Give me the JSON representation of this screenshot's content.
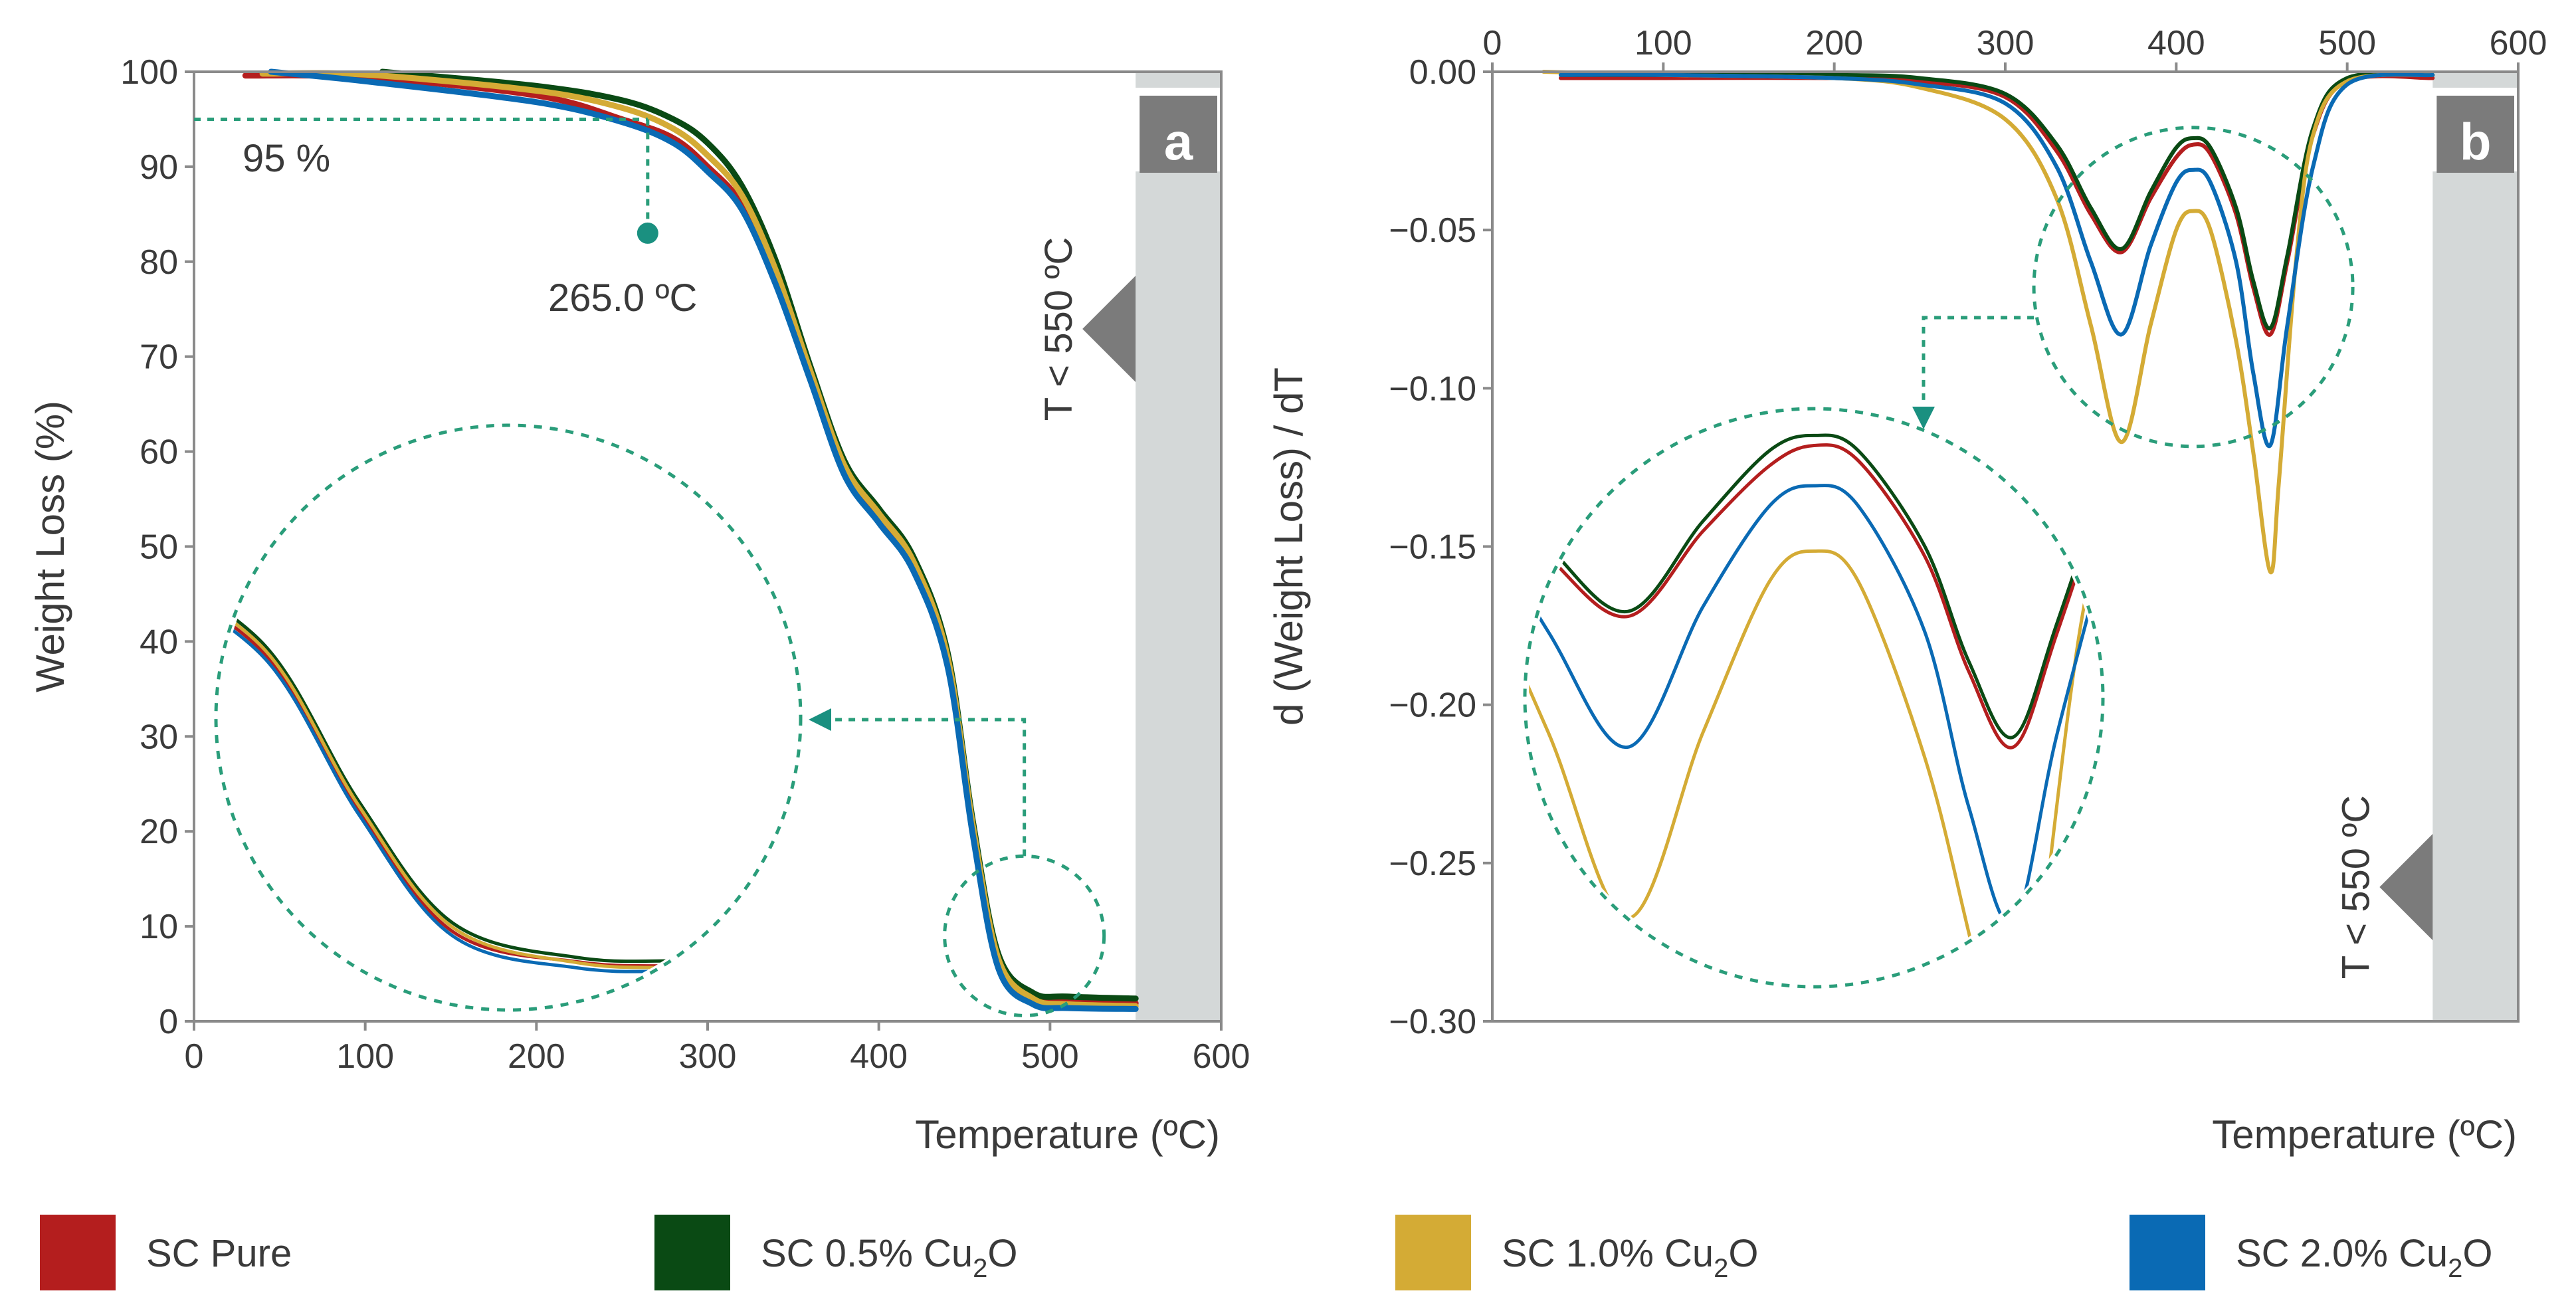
{
  "legend": [
    {
      "name": "SC Pure",
      "prefix": "SC Pure",
      "sub": "",
      "suffix": "",
      "color": "#b41e1e"
    },
    {
      "name": "SC 0.5% Cu2O",
      "prefix": "SC 0.5% Cu",
      "sub": "2",
      "suffix": "O",
      "color": "#0a4a14"
    },
    {
      "name": "SC 1.0% Cu2O",
      "prefix": "SC 1.0% Cu",
      "sub": "2",
      "suffix": "O",
      "color": "#d4ab35"
    },
    {
      "name": "SC 2.0% Cu2O",
      "prefix": "SC 2.0% Cu",
      "sub": "2",
      "suffix": "O",
      "color": "#0a6ab4"
    }
  ],
  "chart_data": [
    {
      "type": "line",
      "panel": "a",
      "xlabel": "Temperature (ºC)",
      "ylabel": "Weight Loss (%)",
      "xlim": [
        0,
        600
      ],
      "ylim": [
        0,
        100
      ],
      "xticks": [
        0,
        100,
        200,
        300,
        400,
        500,
        600
      ],
      "yticks": [
        0,
        10,
        20,
        30,
        40,
        50,
        60,
        70,
        80,
        90,
        100
      ],
      "region_label": "T < 550 ºC",
      "annotations": {
        "threshold": "95 %",
        "onset": "265.0 ºC"
      },
      "series": [
        {
          "name": "SC Pure",
          "x": [
            30,
            100,
            200,
            250,
            280,
            300,
            320,
            340,
            360,
            380,
            400,
            420,
            440,
            455,
            470,
            490,
            510,
            550
          ],
          "y": [
            99.6,
            99.4,
            97.5,
            95.0,
            93.0,
            90.0,
            86.0,
            78.0,
            68.0,
            58.0,
            53.0,
            48.0,
            38.0,
            20.0,
            6.0,
            2.5,
            2.0,
            1.9
          ]
        },
        {
          "name": "SC 0.5% Cu2O",
          "x": [
            110,
            200,
            250,
            280,
            300,
            320,
            340,
            360,
            380,
            400,
            420,
            440,
            455,
            470,
            490,
            510,
            550
          ],
          "y": [
            100.0,
            98.5,
            97.0,
            95.0,
            92.5,
            88.0,
            80.0,
            69.0,
            59.0,
            54.0,
            49.0,
            39.0,
            21.0,
            7.0,
            3.0,
            2.6,
            2.4
          ]
        },
        {
          "name": "SC 1.0% Cu2O",
          "x": [
            40,
            100,
            200,
            250,
            280,
            300,
            320,
            340,
            360,
            380,
            400,
            420,
            440,
            455,
            470,
            490,
            510,
            550
          ],
          "y": [
            99.8,
            99.7,
            98.0,
            96.2,
            94.0,
            91.2,
            87.0,
            79.0,
            68.5,
            58.5,
            53.5,
            48.5,
            38.5,
            20.5,
            6.5,
            2.4,
            1.8,
            1.6
          ]
        },
        {
          "name": "SC 2.0% Cu2O",
          "x": [
            45,
            100,
            200,
            250,
            280,
            300,
            320,
            340,
            360,
            380,
            400,
            420,
            440,
            455,
            470,
            490,
            510,
            550
          ],
          "y": [
            100.0,
            99.0,
            96.8,
            94.7,
            92.5,
            89.5,
            85.5,
            77.5,
            67.5,
            57.5,
            52.5,
            47.5,
            37.5,
            19.5,
            5.5,
            1.8,
            1.4,
            1.3
          ]
        }
      ]
    },
    {
      "type": "line",
      "panel": "b",
      "xlabel": "Temperature (ºC)",
      "ylabel": "d (Weight Loss) / dT",
      "xlim": [
        0,
        600
      ],
      "ylim": [
        -0.3,
        0.0
      ],
      "xticks": [
        0,
        100,
        200,
        300,
        400,
        500,
        600
      ],
      "yticks": [
        "0.00",
        "−0.05",
        "−0.10",
        "−0.15",
        "−0.20",
        "−0.25",
        "−0.30"
      ],
      "region_label": "T < 550 ºC",
      "series": [
        {
          "name": "SC Pure",
          "x": [
            40,
            100,
            200,
            250,
            300,
            330,
            350,
            368,
            385,
            400,
            410,
            420,
            435,
            445,
            455,
            465,
            480,
            500,
            550
          ],
          "y": [
            -0.002,
            -0.002,
            -0.002,
            -0.003,
            -0.008,
            -0.025,
            -0.045,
            -0.057,
            -0.04,
            -0.027,
            -0.023,
            -0.026,
            -0.045,
            -0.068,
            -0.083,
            -0.06,
            -0.02,
            -0.003,
            -0.002
          ]
        },
        {
          "name": "SC 0.5% Cu2O",
          "x": [
            40,
            100,
            200,
            250,
            300,
            330,
            350,
            368,
            385,
            400,
            410,
            420,
            435,
            445,
            455,
            465,
            480,
            500,
            550
          ],
          "y": [
            -0.001,
            -0.001,
            -0.001,
            -0.002,
            -0.007,
            -0.023,
            -0.043,
            -0.056,
            -0.038,
            -0.024,
            -0.021,
            -0.024,
            -0.043,
            -0.066,
            -0.081,
            -0.058,
            -0.018,
            -0.002,
            -0.001
          ]
        },
        {
          "name": "SC 1.0% Cu2O",
          "x": [
            30,
            100,
            200,
            250,
            300,
            330,
            350,
            368,
            385,
            400,
            410,
            420,
            435,
            445,
            455,
            460,
            470,
            480,
            500,
            550
          ],
          "y": [
            0.0,
            -0.001,
            -0.002,
            -0.005,
            -0.015,
            -0.04,
            -0.08,
            -0.117,
            -0.08,
            -0.05,
            -0.044,
            -0.05,
            -0.085,
            -0.12,
            -0.158,
            -0.13,
            -0.06,
            -0.02,
            -0.003,
            -0.001
          ]
        },
        {
          "name": "SC 2.0% Cu2O",
          "x": [
            40,
            100,
            200,
            250,
            300,
            330,
            350,
            368,
            385,
            400,
            410,
            420,
            435,
            445,
            455,
            465,
            480,
            500,
            550
          ],
          "y": [
            -0.001,
            -0.001,
            -0.002,
            -0.004,
            -0.01,
            -0.03,
            -0.06,
            -0.083,
            -0.055,
            -0.035,
            -0.031,
            -0.035,
            -0.06,
            -0.095,
            -0.118,
            -0.08,
            -0.03,
            -0.004,
            -0.001
          ]
        }
      ]
    }
  ]
}
